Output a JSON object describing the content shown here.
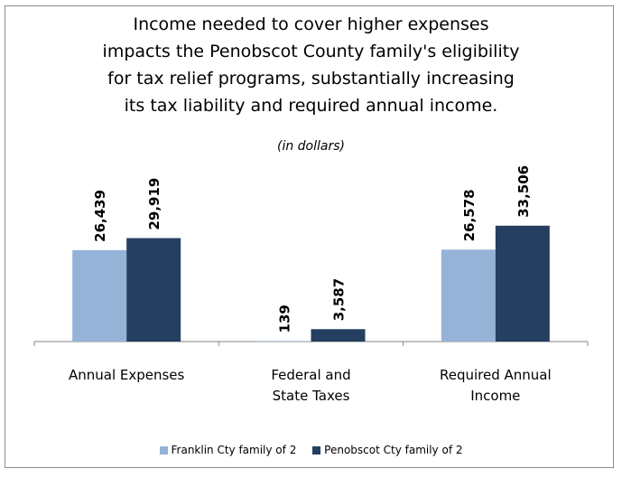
{
  "chart_data": {
    "type": "bar",
    "title_lines": [
      "Income needed to cover higher expenses",
      "impacts the Penobscot County family's eligibility",
      "for tax relief programs, substantially increasing",
      "its tax liability and required annual income."
    ],
    "subtitle": "(in dollars)",
    "categories": [
      [
        "Annual Expenses"
      ],
      [
        "Federal and",
        "State Taxes"
      ],
      [
        "Required Annual",
        "Income"
      ]
    ],
    "series": [
      {
        "name": "Franklin Cty family of 2",
        "color": "#95b3d7",
        "values": [
          26439,
          139,
          26578
        ],
        "labels": [
          "26,439",
          "139",
          "26,578"
        ]
      },
      {
        "name": "Penobscot Cty family of 2",
        "color": "#243f60",
        "values": [
          29919,
          3587,
          33506
        ],
        "labels": [
          "29,919",
          "3,587",
          "33,506"
        ]
      }
    ],
    "ylim": [
      0,
      40000
    ],
    "grid": false,
    "legend_position": "bottom"
  }
}
